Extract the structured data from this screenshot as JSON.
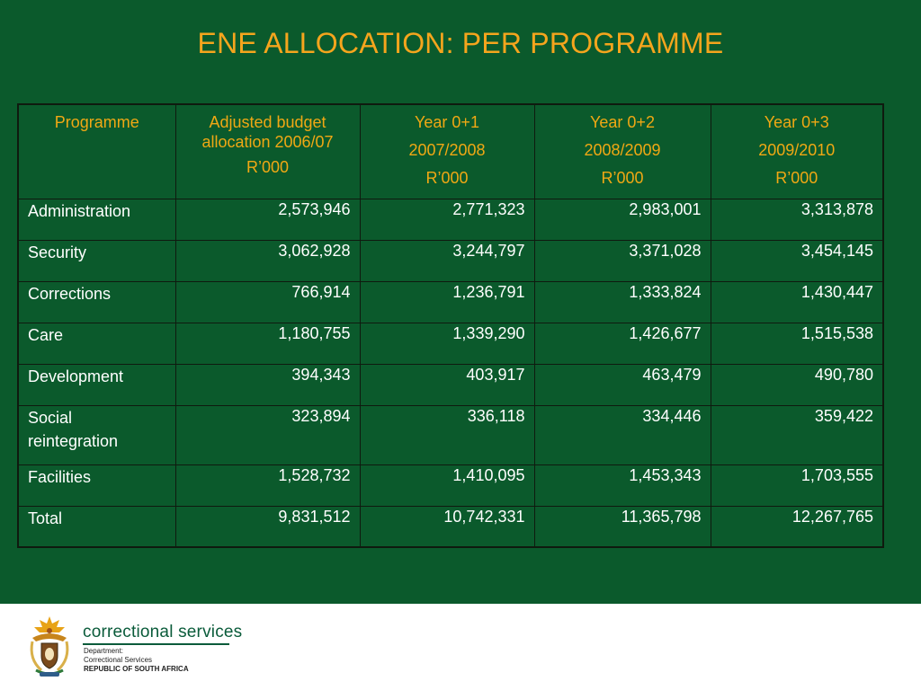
{
  "title": "ENE ALLOCATION: PER PROGRAMME",
  "table": {
    "headers": [
      {
        "lines": [
          "Programme"
        ]
      },
      {
        "lines": [
          "Adjusted budget allocation 2006/07",
          "R’000"
        ]
      },
      {
        "lines": [
          "Year 0+1",
          "2007/2008",
          "R’000"
        ]
      },
      {
        "lines": [
          "Year 0+2",
          "2008/2009",
          "R’000"
        ]
      },
      {
        "lines": [
          "Year 0+3",
          "2009/2010",
          "R’000"
        ]
      }
    ],
    "rows": [
      {
        "label": "Administration",
        "values": [
          "2,573,946",
          "2,771,323",
          "2,983,001",
          "3,313,878"
        ]
      },
      {
        "label": "Security",
        "values": [
          "3,062,928",
          "3,244,797",
          "3,371,028",
          "3,454,145"
        ]
      },
      {
        "label": "Corrections",
        "values": [
          "766,914",
          "1,236,791",
          "1,333,824",
          "1,430,447"
        ]
      },
      {
        "label": "Care",
        "values": [
          "1,180,755",
          "1,339,290",
          "1,426,677",
          "1,515,538"
        ]
      },
      {
        "label": "Development",
        "values": [
          "394,343",
          "403,917",
          "463,479",
          "490,780"
        ]
      },
      {
        "label": "Social reintegration",
        "values": [
          "323,894",
          "336,118",
          "334,446",
          "359,422"
        ]
      },
      {
        "label": "Facilities",
        "values": [
          "1,528,732",
          "1,410,095",
          "1,453,343",
          "1,703,555"
        ]
      },
      {
        "label": "Total",
        "values": [
          "9,831,512",
          "10,742,331",
          "11,365,798",
          "12,267,765"
        ]
      }
    ]
  },
  "footer": {
    "brand": "correctional services",
    "dept_line1": "Department:",
    "dept_line2": "Correctional Services",
    "dept_line3": "REPUBLIC OF SOUTH AFRICA",
    "logo_icon": "coat-of-arms-icon"
  },
  "colors": {
    "background": "#0b5a2c",
    "title": "#f5a51d",
    "header_text": "#f0a814",
    "cell_text": "#ffffff",
    "brand_green": "#0a5b3a"
  }
}
